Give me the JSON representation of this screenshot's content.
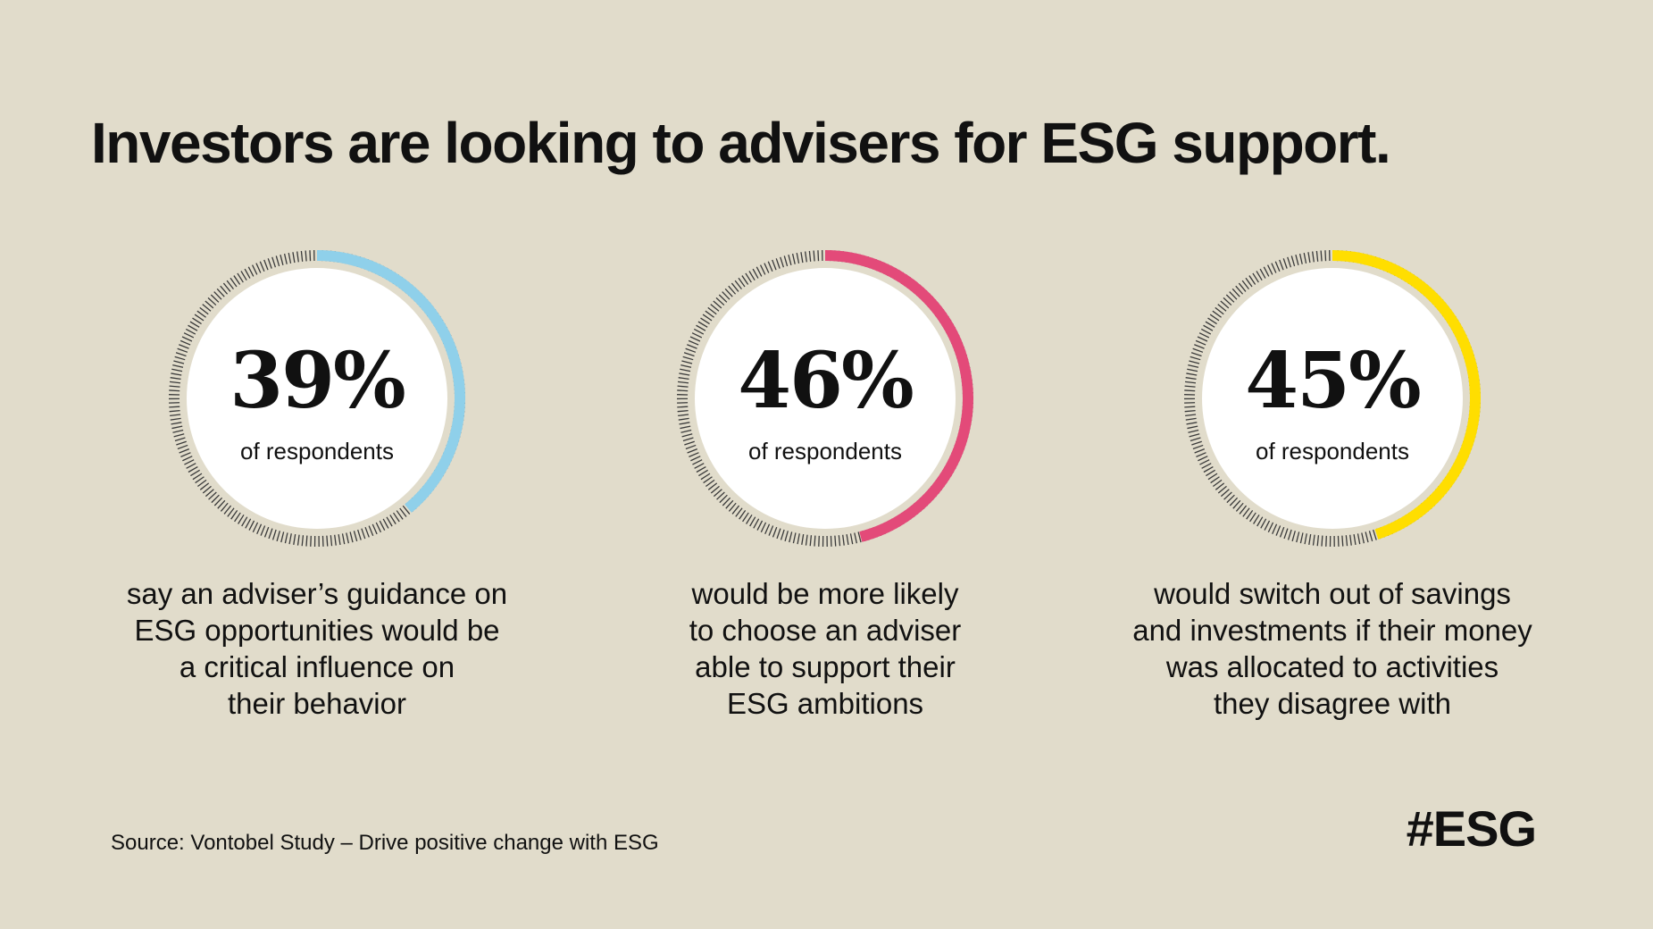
{
  "title": "Investors are looking to advisers for ESG support.",
  "chart_data": {
    "type": "donut",
    "items": [
      {
        "value": 39,
        "label": "39%",
        "sublabel": "of respondents",
        "description": [
          "say an adviser’s guidance on",
          "ESG opportunities would be",
          "a critical influence on",
          "their behavior"
        ],
        "color": "#8fd0ea"
      },
      {
        "value": 46,
        "label": "46%",
        "sublabel": "of respondents",
        "description": [
          "would be more likely",
          "to choose an adviser",
          "able to support their",
          "ESG ambitions"
        ],
        "color": "#e34a79"
      },
      {
        "value": 45,
        "label": "45%",
        "sublabel": "of respondents",
        "description": [
          "would switch out of savings",
          "and investments if their money",
          "was allocated to activities",
          "they disagree with"
        ],
        "color": "#ffde00"
      }
    ]
  },
  "source": "Source: Vontobel Study – Drive positive change with ESG",
  "hashtag": "#ESG"
}
